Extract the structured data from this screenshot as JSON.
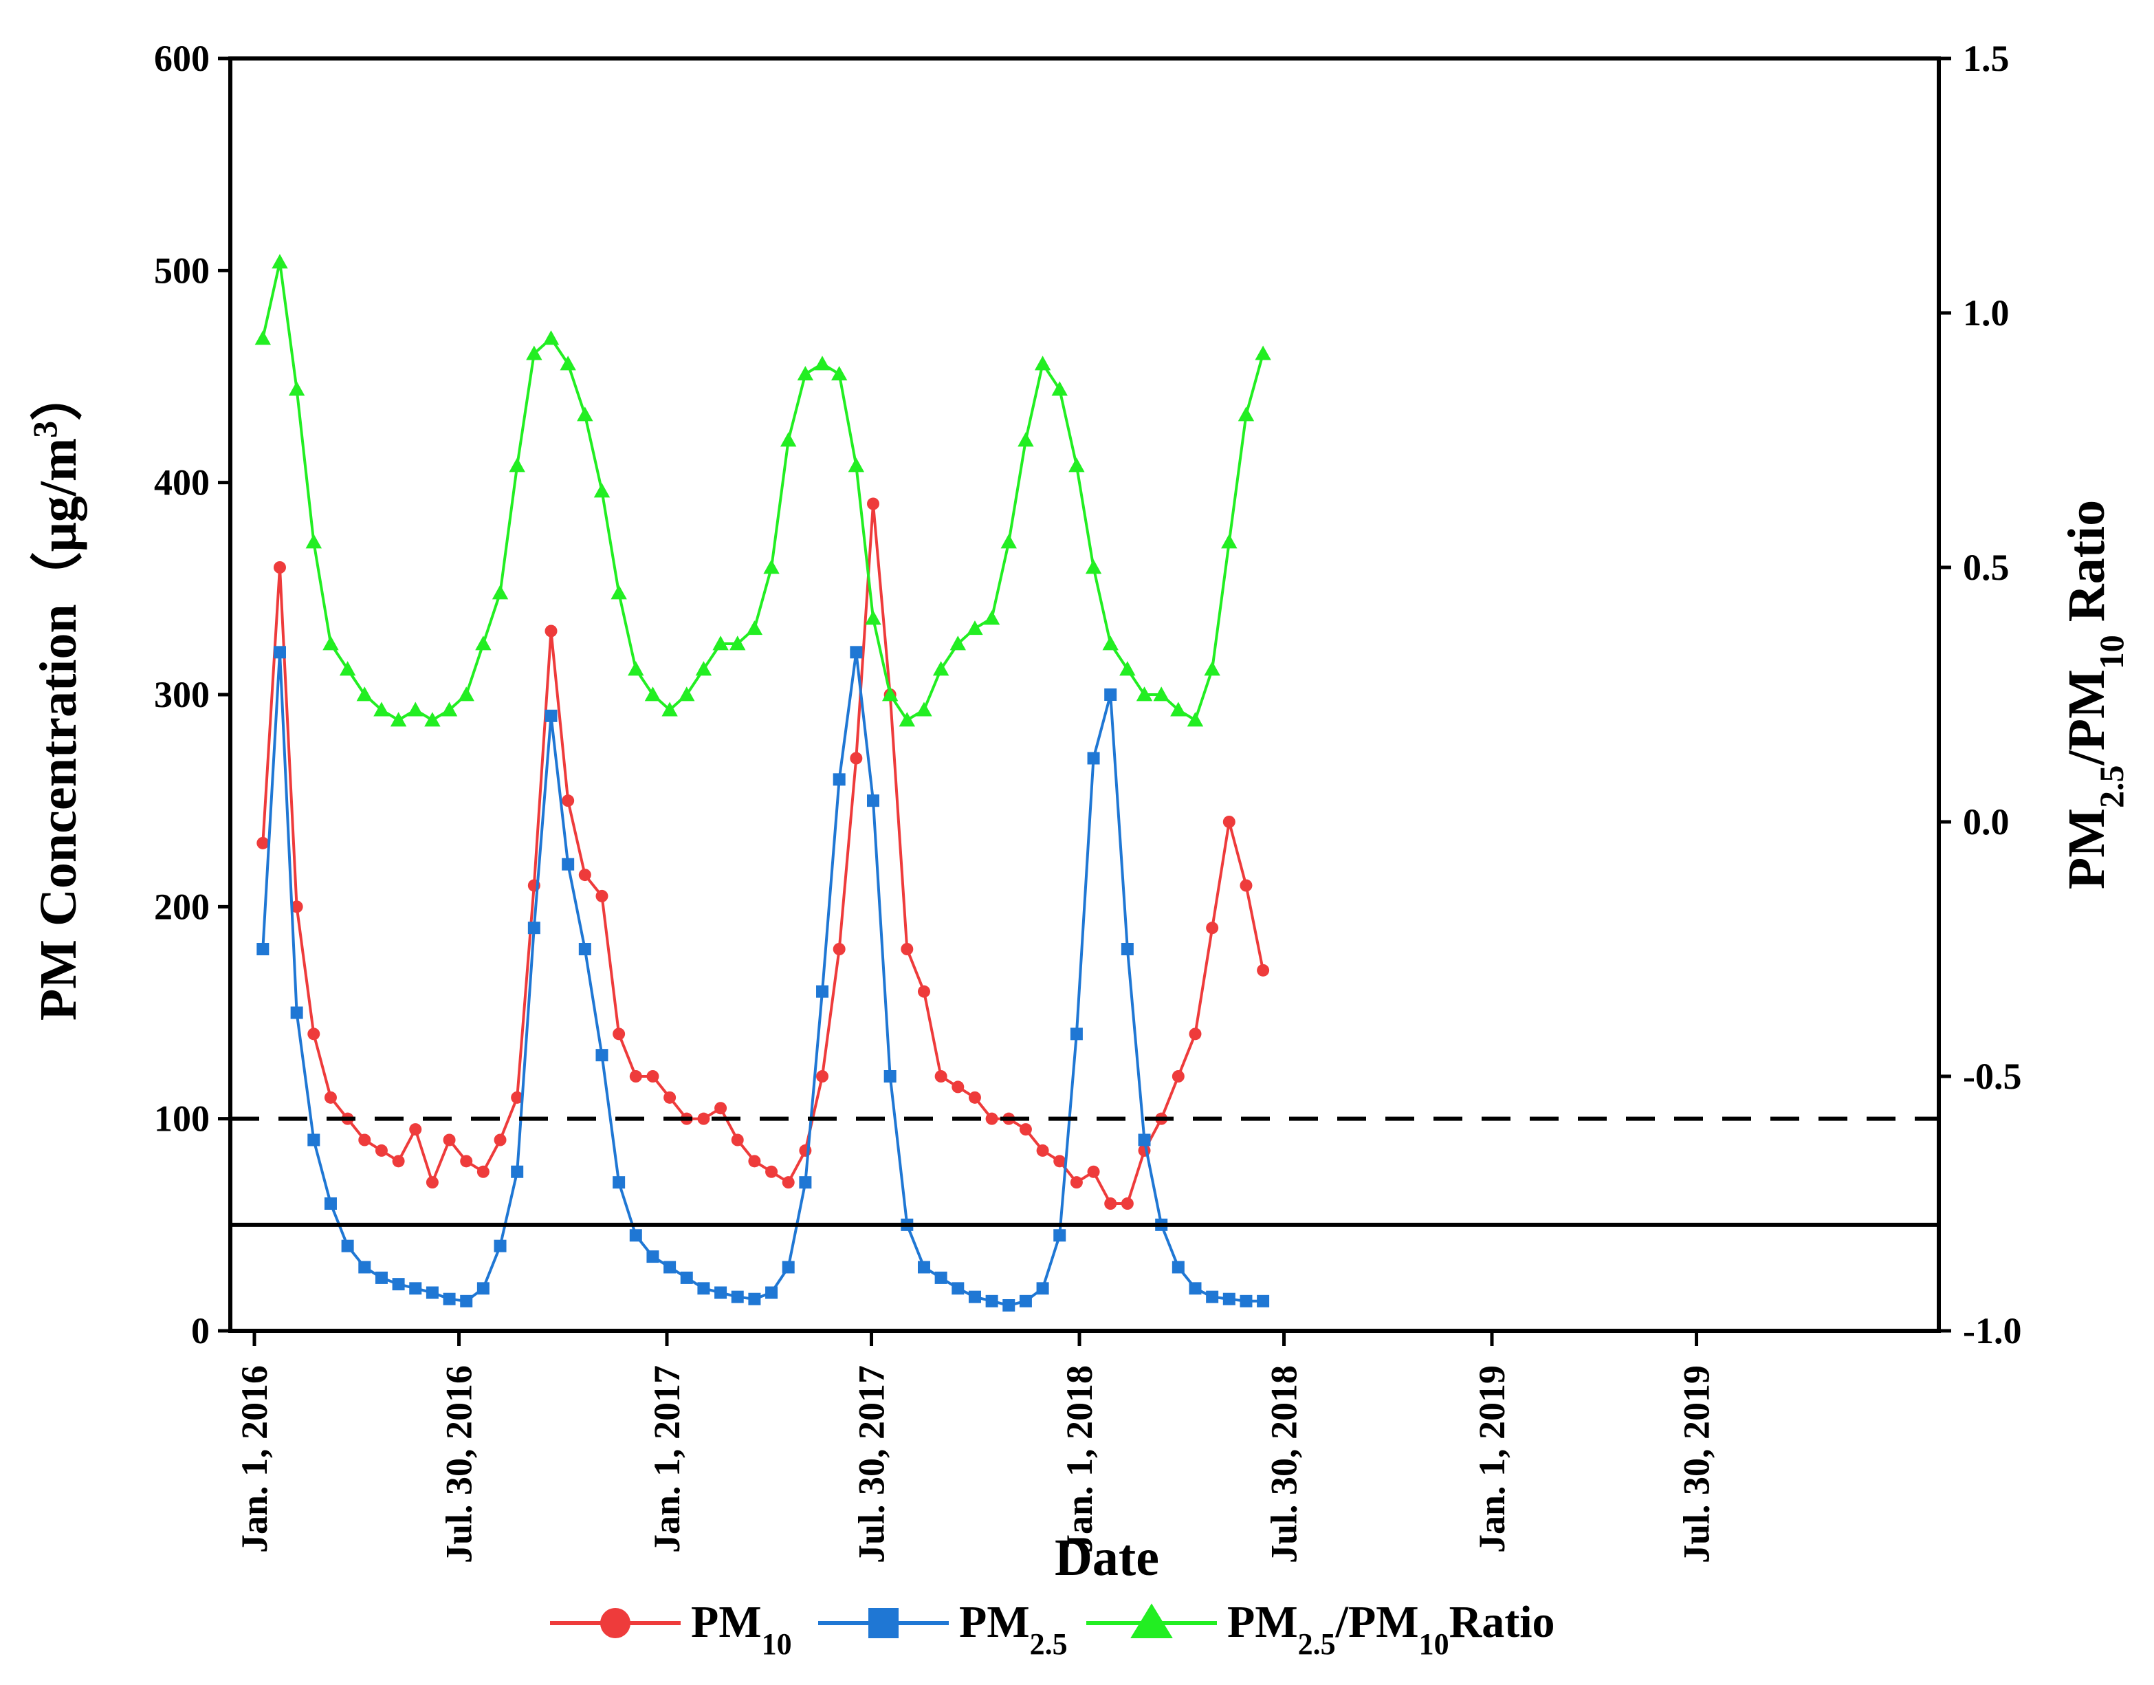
{
  "chart_data": {
    "type": "line",
    "title": "",
    "xlabel": "Date",
    "ylabel": "PM Concentration（μg/m³）",
    "ylabel_parts": {
      "main": "PM Concentration（μg/m",
      "sup": "3",
      "end": "）"
    },
    "y2label_parts": {
      "a": "PM",
      "sub1": "2.5",
      "b": "/PM",
      "sub2": "10",
      "c": " Ratio"
    },
    "ylim": [
      0,
      600
    ],
    "y2lim": [
      -1.0,
      1.5
    ],
    "yticks": [
      "0",
      "100",
      "200",
      "300",
      "400",
      "500",
      "600"
    ],
    "y2ticks": [
      "-1.0",
      "-0.5",
      "0.0",
      "0.5",
      "1.0",
      "1.5"
    ],
    "x_day_range": [
      0,
      1460
    ],
    "x_ticks": [
      {
        "day": 0,
        "label": "Jan. 1, 2016"
      },
      {
        "day": 181,
        "label": "Jul. 30, 2016"
      },
      {
        "day": 365,
        "label": "Jan. 1, 2017"
      },
      {
        "day": 546,
        "label": "Jul. 30, 2017"
      },
      {
        "day": 730,
        "label": "Jan. 1, 2018"
      },
      {
        "day": 911,
        "label": "Jul. 30, 2018"
      },
      {
        "day": 1095,
        "label": "Jan. 1, 2019"
      },
      {
        "day": 1276,
        "label": "Jul. 30, 2019"
      }
    ],
    "reference_lines": [
      {
        "value": 100,
        "style": "dashed",
        "color": "#000000"
      },
      {
        "value": 50,
        "style": "solid",
        "color": "#000000"
      }
    ],
    "sample_step_days": 15,
    "series": [
      {
        "name": "PM10",
        "axis": "left",
        "color": "#EE3B3B",
        "marker": "circle",
        "values": [
          230,
          360,
          200,
          140,
          110,
          100,
          90,
          85,
          80,
          95,
          70,
          90,
          80,
          75,
          90,
          110,
          210,
          330,
          250,
          215,
          205,
          140,
          120,
          120,
          110,
          100,
          100,
          105,
          90,
          80,
          75,
          70,
          85,
          120,
          180,
          270,
          390,
          300,
          180,
          160,
          120,
          115,
          110,
          100,
          100,
          95,
          85,
          80,
          70,
          75,
          60,
          60,
          85,
          100,
          120,
          140,
          190,
          240,
          210,
          170
        ]
      },
      {
        "name": "PM2.5",
        "axis": "left",
        "color": "#1F77D4",
        "marker": "square",
        "values": [
          180,
          320,
          150,
          90,
          60,
          40,
          30,
          25,
          22,
          20,
          18,
          15,
          14,
          20,
          40,
          75,
          190,
          290,
          220,
          180,
          130,
          70,
          45,
          35,
          30,
          25,
          20,
          18,
          16,
          15,
          18,
          30,
          70,
          160,
          260,
          320,
          250,
          120,
          50,
          30,
          25,
          20,
          16,
          14,
          12,
          14,
          20,
          45,
          140,
          270,
          300,
          180,
          90,
          50,
          30,
          20,
          16,
          15,
          14,
          14
        ]
      },
      {
        "name": "PM2.5/PM10 Ratio",
        "axis": "right",
        "color": "#22EE22",
        "marker": "triangle",
        "values": [
          0.95,
          1.1,
          0.85,
          0.55,
          0.35,
          0.3,
          0.25,
          0.22,
          0.2,
          0.22,
          0.2,
          0.22,
          0.25,
          0.35,
          0.45,
          0.7,
          0.92,
          0.95,
          0.9,
          0.8,
          0.65,
          0.45,
          0.3,
          0.25,
          0.22,
          0.25,
          0.3,
          0.35,
          0.35,
          0.38,
          0.5,
          0.75,
          0.88,
          0.9,
          0.88,
          0.7,
          0.4,
          0.25,
          0.2,
          0.22,
          0.3,
          0.35,
          0.38,
          0.4,
          0.55,
          0.75,
          0.9,
          0.85,
          0.7,
          0.5,
          0.35,
          0.3,
          0.25,
          0.25,
          0.22,
          0.2,
          0.3,
          0.55,
          0.8,
          0.92
        ]
      }
    ],
    "legend": {
      "position": "bottom-center",
      "entries": [
        {
          "base": "PM",
          "sub": "10",
          "tail": ""
        },
        {
          "base": "PM",
          "sub": "2.5",
          "tail": ""
        },
        {
          "base": "PM",
          "sub": "2.5",
          "tail": "/PM",
          "sub2": "10",
          "tail2": "Ratio"
        }
      ]
    }
  }
}
